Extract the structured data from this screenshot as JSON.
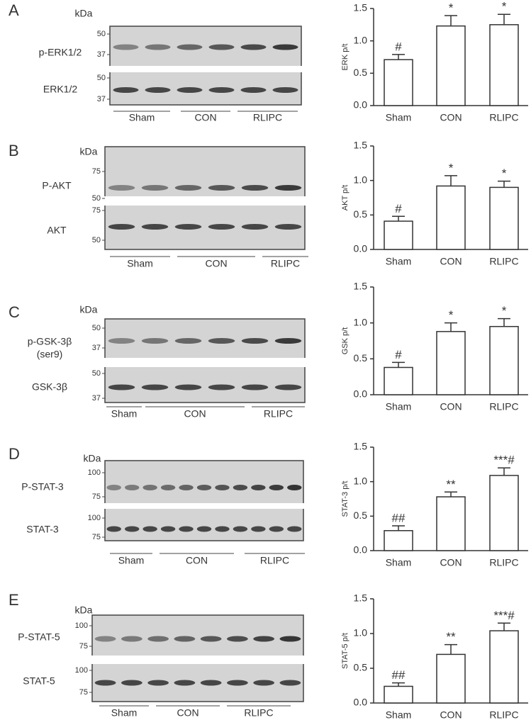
{
  "chart_data": [
    {
      "type": "bar",
      "ylabel": "ERK p/t",
      "categories": [
        "Sham",
        "CON",
        "RLIPC"
      ],
      "values": [
        0.71,
        1.23,
        1.25
      ],
      "errors": [
        0.08,
        0.16,
        0.16
      ],
      "annotations": [
        "#",
        "*",
        "*"
      ],
      "color": "#ffffff",
      "ylim": [
        0,
        1.5
      ],
      "yticks": [
        {
          "value": 0,
          "label": "0.0"
        },
        {
          "value": 0.5,
          "label": "0.5"
        },
        {
          "value": 1,
          "label": "1.0"
        },
        {
          "value": 1.5,
          "label": "1.5"
        }
      ]
    },
    {
      "type": "bar",
      "ylabel": "AKT p/t",
      "categories": [
        "Sham",
        "CON",
        "RLIPC"
      ],
      "values": [
        0.41,
        0.92,
        0.9
      ],
      "errors": [
        0.07,
        0.15,
        0.09
      ],
      "annotations": [
        "#",
        "*",
        "*"
      ],
      "color": "#ffffff",
      "ylim": [
        0,
        1.5
      ],
      "yticks": [
        {
          "value": 0,
          "label": "0.0"
        },
        {
          "value": 0.5,
          "label": "0.5"
        },
        {
          "value": 1,
          "label": "1.0"
        },
        {
          "value": 1.5,
          "label": "1.5"
        }
      ]
    },
    {
      "type": "bar",
      "ylabel": "GSK p/t",
      "categories": [
        "Sham",
        "CON",
        "RLIPC"
      ],
      "values": [
        0.38,
        0.88,
        0.95
      ],
      "errors": [
        0.07,
        0.12,
        0.11
      ],
      "annotations": [
        "#",
        "*",
        "*"
      ],
      "color": "#ffffff",
      "ylim": [
        0,
        1.5
      ],
      "yticks": [
        {
          "value": 0,
          "label": "0.0"
        },
        {
          "value": 0.5,
          "label": "0.5"
        },
        {
          "value": 1,
          "label": "1.0"
        },
        {
          "value": 1.5,
          "label": "1.5"
        }
      ]
    },
    {
      "type": "bar",
      "ylabel": "STAT-3 p/t",
      "categories": [
        "Sham",
        "CON",
        "RLIPC"
      ],
      "values": [
        0.29,
        0.78,
        1.09
      ],
      "errors": [
        0.07,
        0.07,
        0.11
      ],
      "annotations": [
        "##",
        "**",
        "***#"
      ],
      "color": "#ffffff",
      "ylim": [
        0,
        1.5
      ],
      "yticks": [
        {
          "value": 0,
          "label": "0.0"
        },
        {
          "value": 0.5,
          "label": "0.5"
        },
        {
          "value": 1,
          "label": "1.0"
        },
        {
          "value": 1.5,
          "label": "1.5"
        }
      ]
    },
    {
      "type": "bar",
      "ylabel": "STAT-5 p/t",
      "categories": [
        "Sham",
        "CON",
        "RLIPC"
      ],
      "values": [
        0.24,
        0.7,
        1.04
      ],
      "errors": [
        0.05,
        0.14,
        0.11
      ],
      "annotations": [
        "##",
        "**",
        "***#"
      ],
      "color": "#ffffff",
      "ylim": [
        0,
        1.5
      ],
      "yticks": [
        {
          "value": 0,
          "label": "0.0"
        },
        {
          "value": 0.5,
          "label": "0.5"
        },
        {
          "value": 1,
          "label": "1.0"
        },
        {
          "value": 1.5,
          "label": "1.5"
        }
      ]
    }
  ],
  "blots": [
    {
      "letter": "A",
      "unit": "kDa",
      "rows": [
        {
          "name": [
            "p-ERK1/2"
          ],
          "markers": [
            "50",
            "37"
          ]
        },
        {
          "name": [
            "ERK1/2"
          ],
          "markers": [
            "50",
            "37"
          ]
        }
      ],
      "groups": [
        "Sham",
        "CON",
        "RLIPC"
      ]
    },
    {
      "letter": "B",
      "unit": "kDa",
      "rows": [
        {
          "name": [
            "P-AKT"
          ],
          "markers": [
            "75",
            "50"
          ]
        },
        {
          "name": [
            "AKT"
          ],
          "markers": [
            "75",
            "50"
          ]
        }
      ],
      "groups": [
        "Sham",
        "CON",
        "RLIPC"
      ]
    },
    {
      "letter": "C",
      "unit": "kDa",
      "rows": [
        {
          "name": [
            "p-GSK-3β",
            "(ser9)"
          ],
          "markers": [
            "50",
            "37"
          ]
        },
        {
          "name": [
            "GSK-3β"
          ],
          "markers": [
            "50",
            "37"
          ]
        }
      ],
      "groups": [
        "Sham",
        "CON",
        "RLIPC"
      ]
    },
    {
      "letter": "D",
      "unit": "kDa",
      "rows": [
        {
          "name": [
            "P-STAT-3"
          ],
          "markers": [
            "100",
            "75"
          ]
        },
        {
          "name": [
            "STAT-3"
          ],
          "markers": [
            "100",
            "75"
          ]
        }
      ],
      "groups": [
        "Sham",
        "CON",
        "RLIPC"
      ]
    },
    {
      "letter": "E",
      "unit": "kDa",
      "rows": [
        {
          "name": [
            "P-STAT-5"
          ],
          "markers": [
            "100",
            "75"
          ]
        },
        {
          "name": [
            "STAT-5"
          ],
          "markers": [
            "100",
            "75"
          ]
        }
      ],
      "groups": [
        "Sham",
        "CON",
        "RLIPC"
      ]
    }
  ]
}
